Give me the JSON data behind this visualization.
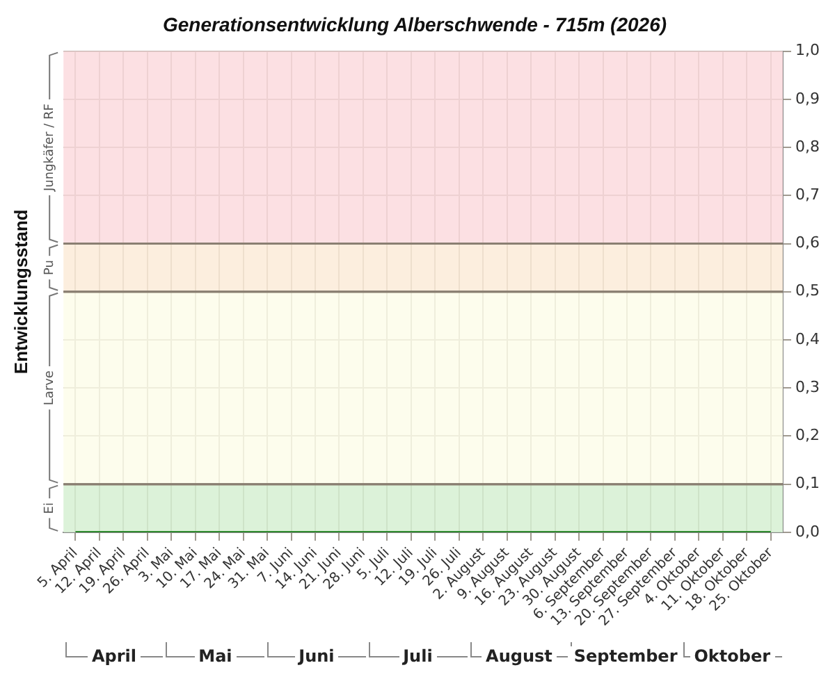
{
  "chart_data": {
    "type": "line",
    "title": "Generationsentwicklung Alberschwende - 715m (2026)",
    "ylabel": "Entwicklungsstand",
    "categories": [
      "5. April",
      "12. April",
      "19. April",
      "26. April",
      "3. Mai",
      "10. Mai",
      "17. Mai",
      "24. Mai",
      "31. Mai",
      "7. Juni",
      "14. Juni",
      "21. Juni",
      "28. Juni",
      "5. Juli",
      "12. Juli",
      "19. Juli",
      "26. Juli",
      "2. August",
      "9. August",
      "16. August",
      "23. August",
      "30. August",
      "6. September",
      "13. September",
      "20. September",
      "27. September",
      "4. Oktober",
      "11. Oktober",
      "18. Oktober",
      "25. Oktober"
    ],
    "series": [
      {
        "color": "#2e8b2e",
        "values": [
          0,
          0,
          0,
          0,
          0,
          0,
          0,
          0,
          0,
          0,
          0,
          0,
          0,
          0,
          0,
          0,
          0,
          0,
          0,
          0,
          0,
          0,
          0,
          0,
          0,
          0,
          0,
          0,
          0,
          0
        ]
      }
    ],
    "ylim": [
      0,
      1
    ],
    "yticks": [
      {
        "value": 0,
        "label": "0,0"
      },
      {
        "value": 0.1,
        "label": "0,1"
      },
      {
        "value": 0.2,
        "label": "0,2"
      },
      {
        "value": 0.3,
        "label": "0,3"
      },
      {
        "value": 0.4,
        "label": "0,4"
      },
      {
        "value": 0.5,
        "label": "0,5"
      },
      {
        "value": 0.6,
        "label": "0,6"
      },
      {
        "value": 0.7,
        "label": "0,7"
      },
      {
        "value": 0.8,
        "label": "0,8"
      },
      {
        "value": 0.9,
        "label": "0,9"
      },
      {
        "value": 1,
        "label": "1,0"
      }
    ],
    "bands": [
      {
        "axis": "y",
        "from": 0,
        "to": 0.1,
        "label": "Ei",
        "color": "#d6f0d2"
      },
      {
        "axis": "y",
        "from": 0.1,
        "to": 0.5,
        "label": "Larve",
        "color": "#fdfdea"
      },
      {
        "axis": "y",
        "from": 0.5,
        "to": 0.6,
        "label": "Pu",
        "color": "#fbebd8"
      },
      {
        "axis": "y",
        "from": 0.6,
        "to": 1,
        "label": "Jungkäfer / RF",
        "color": "#fcdade"
      }
    ],
    "annotations": [
      "April",
      "Mai",
      "Juni",
      "Juli",
      "August",
      "September",
      "Oktober"
    ],
    "grid": true,
    "legend": false,
    "marker": "none",
    "line_style": "solid"
  }
}
